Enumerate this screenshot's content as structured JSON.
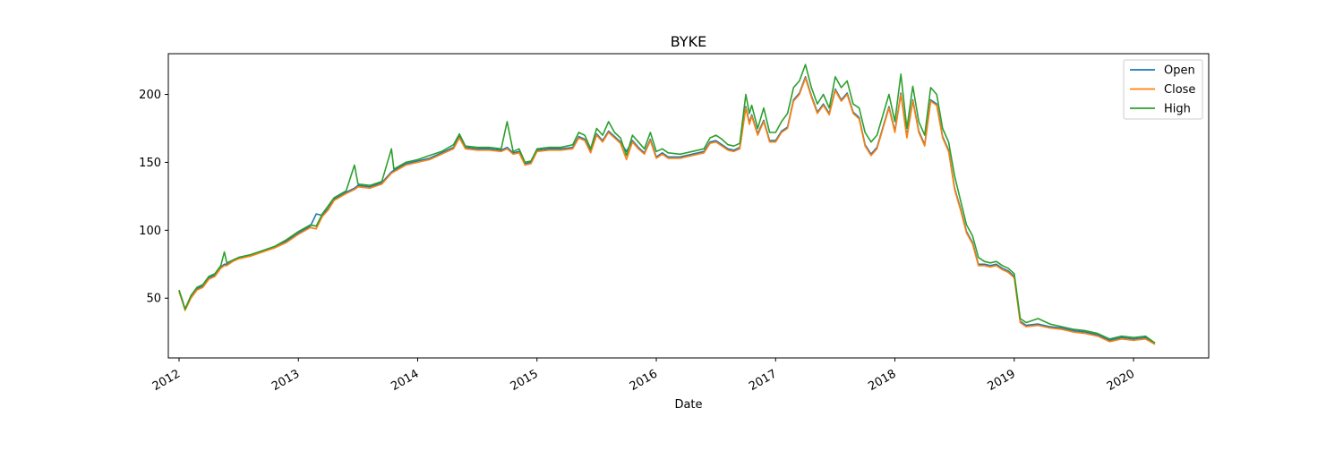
{
  "chart_data": {
    "type": "line",
    "title": "BYKE",
    "xlabel": "Date",
    "ylabel": "",
    "xlim": [
      2011.91,
      2020.63
    ],
    "ylim": [
      6,
      230
    ],
    "x_ticks": [
      2012,
      2013,
      2014,
      2015,
      2016,
      2017,
      2018,
      2019,
      2020
    ],
    "x_tick_labels": [
      "2012",
      "2013",
      "2014",
      "2015",
      "2016",
      "2017",
      "2018",
      "2019",
      "2020"
    ],
    "y_ticks": [
      50,
      100,
      150,
      200
    ],
    "y_tick_labels": [
      "50",
      "100",
      "150",
      "200"
    ],
    "grid": false,
    "legend_position": "top-right",
    "series": [
      {
        "name": "Open",
        "color": "#1f77b4"
      },
      {
        "name": "Close",
        "color": "#ff7f0e"
      },
      {
        "name": "High",
        "color": "#2ca02c"
      }
    ],
    "x": [
      2012.0,
      2012.03,
      2012.05,
      2012.1,
      2012.15,
      2012.2,
      2012.25,
      2012.3,
      2012.35,
      2012.38,
      2012.4,
      2012.45,
      2012.5,
      2012.6,
      2012.7,
      2012.8,
      2012.9,
      2013.0,
      2013.1,
      2013.15,
      2013.2,
      2013.25,
      2013.3,
      2013.4,
      2013.47,
      2013.5,
      2013.6,
      2013.7,
      2013.78,
      2013.8,
      2013.9,
      2014.0,
      2014.1,
      2014.2,
      2014.3,
      2014.35,
      2014.4,
      2014.5,
      2014.6,
      2014.7,
      2014.75,
      2014.8,
      2014.85,
      2014.9,
      2014.95,
      2015.0,
      2015.1,
      2015.2,
      2015.3,
      2015.35,
      2015.4,
      2015.45,
      2015.5,
      2015.55,
      2015.6,
      2015.65,
      2015.7,
      2015.75,
      2015.8,
      2015.85,
      2015.9,
      2015.95,
      2016.0,
      2016.05,
      2016.1,
      2016.2,
      2016.3,
      2016.4,
      2016.45,
      2016.5,
      2016.55,
      2016.6,
      2016.65,
      2016.7,
      2016.75,
      2016.78,
      2016.8,
      2016.85,
      2016.9,
      2016.95,
      2017.0,
      2017.05,
      2017.1,
      2017.15,
      2017.2,
      2017.25,
      2017.3,
      2017.35,
      2017.4,
      2017.45,
      2017.5,
      2017.55,
      2017.6,
      2017.65,
      2017.7,
      2017.75,
      2017.8,
      2017.85,
      2017.9,
      2017.95,
      2018.0,
      2018.05,
      2018.1,
      2018.15,
      2018.2,
      2018.25,
      2018.3,
      2018.35,
      2018.4,
      2018.45,
      2018.5,
      2018.55,
      2018.6,
      2018.65,
      2018.7,
      2018.75,
      2018.8,
      2018.85,
      2018.9,
      2018.95,
      2019.0,
      2019.05,
      2019.1,
      2019.2,
      2019.3,
      2019.4,
      2019.5,
      2019.6,
      2019.7,
      2019.8,
      2019.9,
      2020.0,
      2020.1,
      2020.18
    ],
    "high": [
      56,
      48,
      42,
      52,
      58,
      60,
      66,
      68,
      74,
      84,
      76,
      78,
      80,
      82,
      85,
      88,
      93,
      99,
      104,
      103,
      112,
      118,
      124,
      129,
      148,
      134,
      133,
      136,
      160,
      145,
      150,
      152,
      155,
      158,
      163,
      171,
      162,
      161,
      161,
      160,
      180,
      158,
      160,
      150,
      151,
      160,
      161,
      161,
      163,
      172,
      170,
      160,
      175,
      170,
      180,
      172,
      168,
      155,
      170,
      165,
      160,
      172,
      158,
      160,
      157,
      156,
      158,
      160,
      168,
      170,
      167,
      163,
      162,
      164,
      200,
      186,
      192,
      175,
      190,
      172,
      172,
      180,
      186,
      205,
      210,
      222,
      205,
      193,
      200,
      190,
      213,
      205,
      210,
      193,
      190,
      172,
      165,
      170,
      185,
      200,
      180,
      215,
      175,
      206,
      180,
      170,
      205,
      200,
      175,
      165,
      140,
      122,
      104,
      96,
      80,
      77,
      76,
      77,
      74,
      72,
      68,
      35,
      32,
      35,
      31,
      29,
      27,
      26,
      24,
      20,
      22,
      21,
      22,
      17
    ],
    "close": [
      55,
      47,
      41,
      50,
      56,
      58,
      64,
      66,
      72,
      74,
      74,
      77,
      79,
      81,
      84,
      87,
      91,
      97,
      102,
      101,
      110,
      115,
      122,
      127,
      130,
      132,
      131,
      134,
      142,
      143,
      148,
      150,
      152,
      156,
      160,
      168,
      160,
      159,
      159,
      158,
      160,
      156,
      157,
      148,
      149,
      158,
      159,
      159,
      160,
      168,
      166,
      157,
      170,
      165,
      172,
      168,
      164,
      152,
      165,
      160,
      156,
      166,
      153,
      156,
      153,
      153,
      155,
      157,
      164,
      165,
      162,
      159,
      158,
      160,
      190,
      178,
      184,
      170,
      180,
      165,
      165,
      172,
      175,
      195,
      200,
      212,
      198,
      186,
      192,
      185,
      203,
      195,
      200,
      186,
      182,
      162,
      155,
      160,
      175,
      190,
      172,
      200,
      168,
      195,
      172,
      162,
      195,
      192,
      168,
      158,
      130,
      115,
      98,
      90,
      74,
      74,
      73,
      74,
      71,
      69,
      65,
      32,
      29,
      30,
      28,
      27,
      25,
      24,
      22,
      18,
      20,
      19,
      20,
      16
    ],
    "open": [
      55,
      47,
      42,
      51,
      57,
      59,
      65,
      67,
      73,
      75,
      75,
      78,
      80,
      82,
      85,
      88,
      92,
      98,
      103,
      112,
      111,
      116,
      123,
      128,
      131,
      133,
      132,
      135,
      143,
      144,
      149,
      151,
      153,
      157,
      161,
      169,
      161,
      160,
      160,
      159,
      161,
      157,
      158,
      149,
      150,
      159,
      160,
      160,
      161,
      169,
      167,
      158,
      171,
      166,
      173,
      169,
      165,
      158,
      166,
      161,
      157,
      167,
      154,
      157,
      154,
      154,
      156,
      158,
      165,
      166,
      163,
      160,
      159,
      161,
      191,
      179,
      185,
      171,
      181,
      166,
      166,
      173,
      176,
      196,
      201,
      213,
      199,
      187,
      193,
      186,
      204,
      196,
      201,
      187,
      183,
      163,
      156,
      161,
      176,
      191,
      173,
      201,
      169,
      196,
      173,
      163,
      196,
      193,
      169,
      159,
      131,
      116,
      99,
      91,
      75,
      75,
      74,
      75,
      72,
      70,
      66,
      33,
      30,
      31,
      29,
      28,
      26,
      25,
      23,
      19,
      21,
      20,
      21,
      17
    ]
  }
}
